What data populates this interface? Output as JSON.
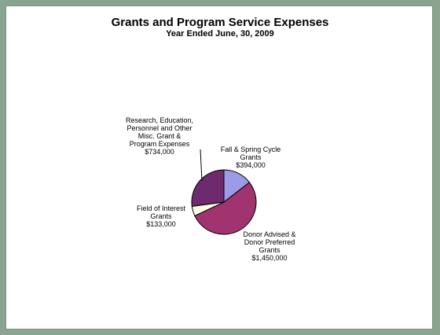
{
  "chart_data": {
    "type": "pie",
    "title": "Grants and Program Service Expenses",
    "subtitle": "Year Ended June, 30, 2009",
    "slices": [
      {
        "name": "Fall & Spring Cycle Grants",
        "value": 394000,
        "color": "#9c9ce6",
        "label_lines": [
          "Fall & Spring Cycle",
          "Grants",
          "$394,000"
        ]
      },
      {
        "name": "Donor Advised & Donor Preferred Grants",
        "value": 1450000,
        "color": "#a13470",
        "label_lines": [
          "Donor Advised &",
          "Donor Preferred",
          "Grants",
          "$1,450,000"
        ]
      },
      {
        "name": "Field of Interest Grants",
        "value": 133000,
        "color": "#fbfbe4",
        "label_lines": [
          "Field of Interest",
          "Grants",
          "$133,000"
        ]
      },
      {
        "name": "Research, Education, Personnel and Other Misc. Grant & Program Expenses",
        "value": 734000,
        "color": "#6e2a6e",
        "label_lines": [
          "Research, Education,",
          "Personnel and Other",
          "Misc. Grant &",
          "Program  Expenses",
          "$734,000"
        ]
      }
    ]
  }
}
